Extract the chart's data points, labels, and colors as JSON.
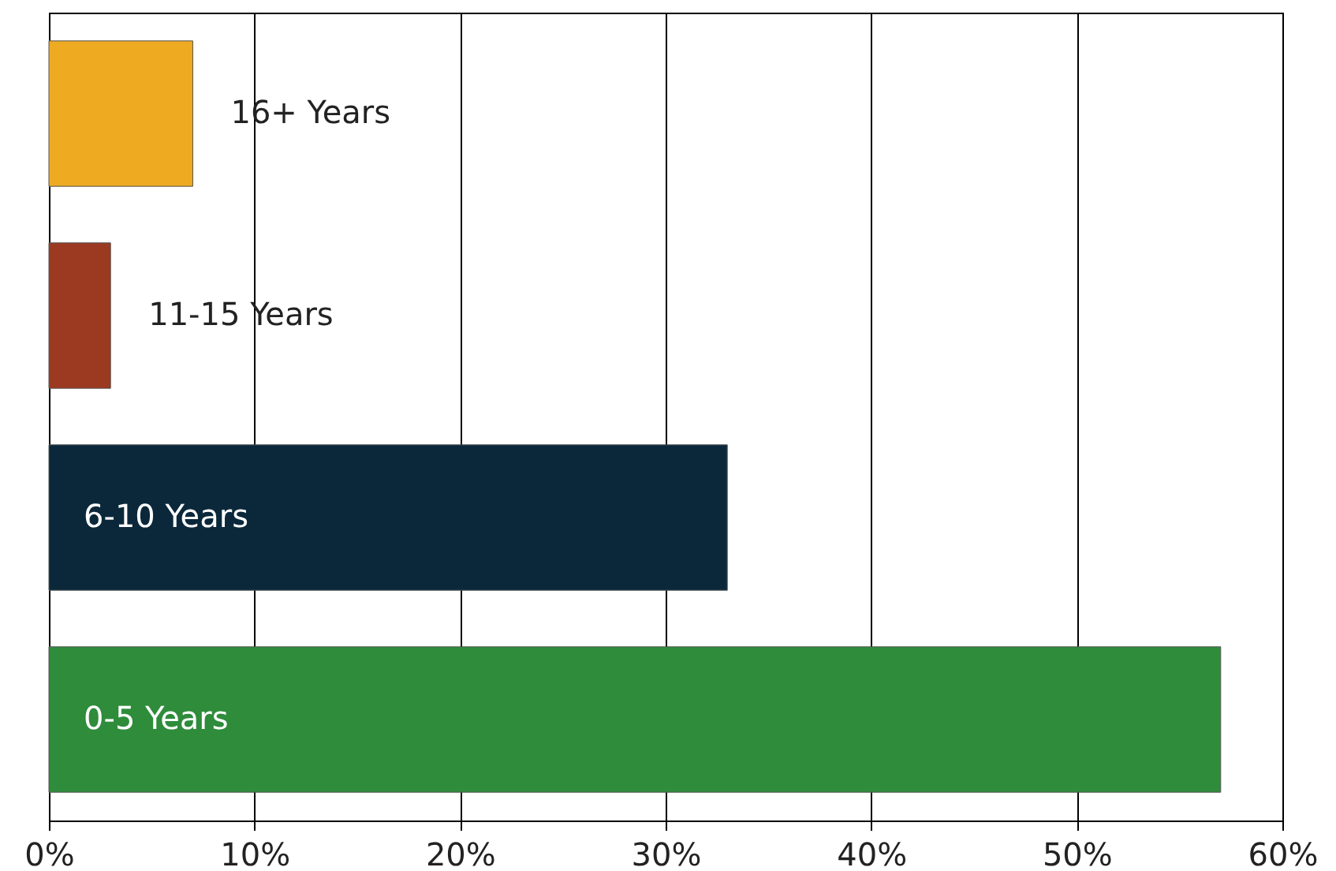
{
  "chart_data": {
    "type": "bar",
    "orientation": "horizontal",
    "categories": [
      "16+ Years",
      "11-15 Years",
      "6-10 Years",
      "0-5 Years"
    ],
    "values": [
      7,
      3,
      33,
      57
    ],
    "colors": [
      "#eeab22",
      "#9b3a20",
      "#0b283b",
      "#2e8c3b"
    ],
    "xlim": [
      0,
      60
    ],
    "xticks": [
      {
        "value": 0,
        "label": "0%"
      },
      {
        "value": 10,
        "label": "10%"
      },
      {
        "value": 20,
        "label": "20%"
      },
      {
        "value": 30,
        "label": "30%"
      },
      {
        "value": 40,
        "label": "40%"
      },
      {
        "value": 50,
        "label": "50%"
      },
      {
        "value": 60,
        "label": "60%"
      }
    ],
    "grid": "x",
    "tick_labels": "x"
  }
}
